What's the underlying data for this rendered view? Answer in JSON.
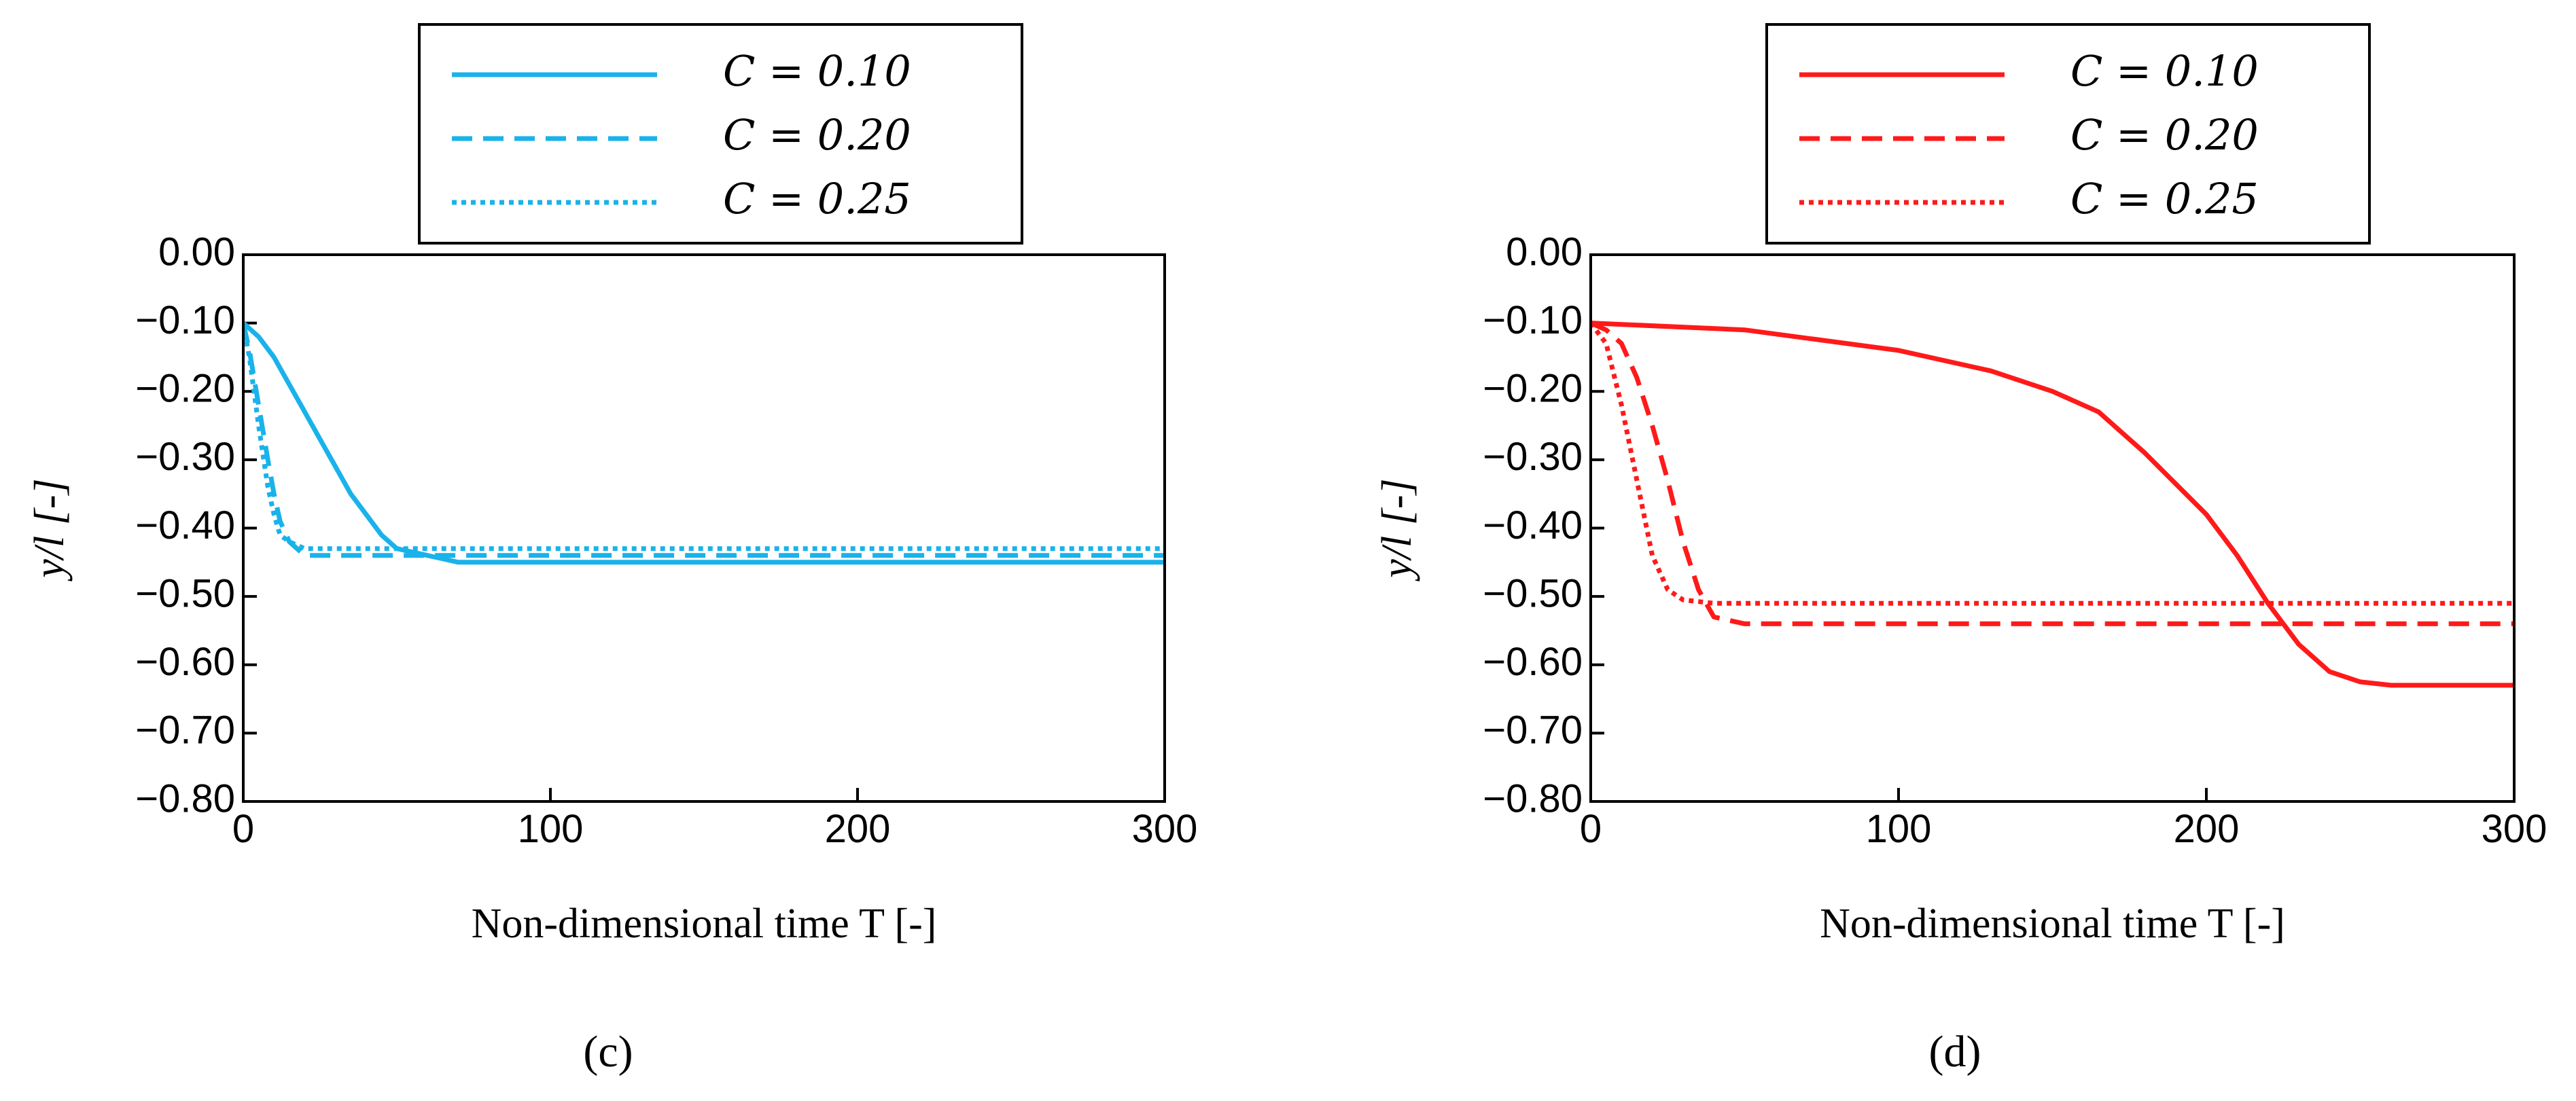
{
  "chart_data": [
    {
      "type": "line",
      "caption": "(c)",
      "xlabel": "Non-dimensional time T [-]",
      "ylabel": "y/l [-]",
      "xlim": [
        0,
        300
      ],
      "xticks": [
        0,
        100,
        200,
        300
      ],
      "ylim": [
        -0.8,
        0
      ],
      "yticks": [
        {
          "value": -0.8,
          "label": "−0.80"
        },
        {
          "value": -0.7,
          "label": "−0.70"
        },
        {
          "value": -0.6,
          "label": "−0.60"
        },
        {
          "value": -0.5,
          "label": "−0.50"
        },
        {
          "value": -0.4,
          "label": "−0.40"
        },
        {
          "value": -0.3,
          "label": "−0.30"
        },
        {
          "value": -0.2,
          "label": "−0.20"
        },
        {
          "value": -0.1,
          "label": "−0.10"
        },
        {
          "value": 0,
          "label": "0.00"
        }
      ],
      "series": [
        {
          "name": "C = 0.10",
          "color": "#1ab2ea",
          "style": "solid",
          "x": [
            0,
            5,
            10,
            15,
            20,
            25,
            30,
            35,
            40,
            45,
            50,
            60,
            70,
            80,
            100,
            150,
            200,
            250,
            300
          ],
          "values": [
            -0.1,
            -0.12,
            -0.15,
            -0.19,
            -0.23,
            -0.27,
            -0.31,
            -0.35,
            -0.38,
            -0.41,
            -0.43,
            -0.44,
            -0.45,
            -0.45,
            -0.45,
            -0.45,
            -0.45,
            -0.45,
            -0.45
          ]
        },
        {
          "name": "C = 0.20",
          "color": "#1ab2ea",
          "style": "dashed",
          "x": [
            0,
            2,
            5,
            8,
            10,
            12,
            15,
            20,
            25,
            300
          ],
          "values": [
            -0.1,
            -0.14,
            -0.22,
            -0.3,
            -0.35,
            -0.39,
            -0.42,
            -0.44,
            -0.44,
            -0.44
          ]
        },
        {
          "name": "C = 0.25",
          "color": "#1ab2ea",
          "style": "dotted",
          "x": [
            0,
            2,
            5,
            8,
            10,
            12,
            15,
            20,
            300
          ],
          "values": [
            -0.1,
            -0.15,
            -0.25,
            -0.34,
            -0.38,
            -0.41,
            -0.42,
            -0.43,
            -0.43
          ]
        }
      ]
    },
    {
      "type": "line",
      "caption": "(d)",
      "xlabel": "Non-dimensional time T [-]",
      "ylabel": "y/l [-]",
      "xlim": [
        0,
        300
      ],
      "xticks": [
        0,
        100,
        200,
        300
      ],
      "ylim": [
        -0.8,
        0
      ],
      "yticks": [
        {
          "value": -0.8,
          "label": "−0.80"
        },
        {
          "value": -0.7,
          "label": "−0.70"
        },
        {
          "value": -0.6,
          "label": "−0.60"
        },
        {
          "value": -0.5,
          "label": "−0.50"
        },
        {
          "value": -0.4,
          "label": "−0.40"
        },
        {
          "value": -0.3,
          "label": "−0.30"
        },
        {
          "value": -0.2,
          "label": "−0.20"
        },
        {
          "value": -0.1,
          "label": "−0.10"
        },
        {
          "value": 0,
          "label": "0.00"
        }
      ],
      "series": [
        {
          "name": "C = 0.10",
          "color": "#ff1a1a",
          "style": "solid",
          "x": [
            0,
            50,
            100,
            130,
            150,
            165,
            180,
            200,
            210,
            220,
            230,
            240,
            250,
            260,
            300
          ],
          "values": [
            -0.1,
            -0.11,
            -0.14,
            -0.17,
            -0.2,
            -0.23,
            -0.29,
            -0.38,
            -0.44,
            -0.51,
            -0.57,
            -0.61,
            -0.625,
            -0.63,
            -0.63
          ]
        },
        {
          "name": "C = 0.20",
          "color": "#ff1a1a",
          "style": "dashed",
          "x": [
            0,
            5,
            10,
            15,
            20,
            25,
            30,
            35,
            40,
            50,
            300
          ],
          "values": [
            -0.1,
            -0.11,
            -0.13,
            -0.18,
            -0.25,
            -0.33,
            -0.42,
            -0.49,
            -0.53,
            -0.54,
            -0.54
          ]
        },
        {
          "name": "C = 0.25",
          "color": "#ff1a1a",
          "style": "dotted",
          "x": [
            0,
            5,
            10,
            15,
            20,
            25,
            30,
            40,
            300
          ],
          "values": [
            -0.1,
            -0.13,
            -0.22,
            -0.33,
            -0.44,
            -0.49,
            -0.505,
            -0.51,
            -0.51
          ]
        }
      ]
    }
  ]
}
